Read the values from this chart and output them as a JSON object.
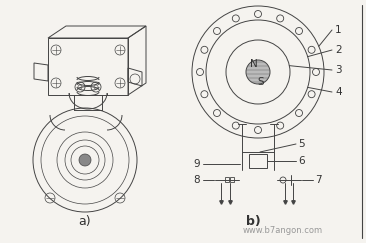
{
  "bg_color": "#f5f3ef",
  "line_color": "#444444",
  "label_color": "#333333",
  "part_a_label": "a)",
  "part_b_label": "b)",
  "watermark": "www.b7angon.com",
  "circle_labels": [
    "1",
    "2",
    "3",
    "4"
  ],
  "bottom_labels": [
    "5",
    "6",
    "7",
    "8",
    "9"
  ],
  "ns_labels": [
    "N",
    "S"
  ],
  "figsize": [
    3.66,
    2.43
  ],
  "dpi": 100
}
